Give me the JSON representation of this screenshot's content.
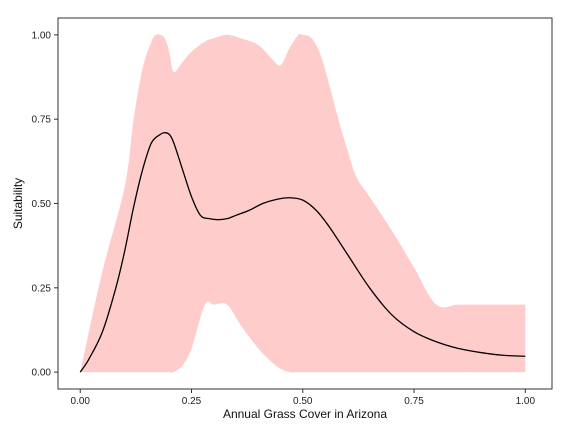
{
  "chart_data": {
    "type": "line",
    "title": "",
    "xlabel": "Annual Grass Cover in Arizona",
    "ylabel": "Suitability",
    "xlim": [
      -0.05,
      1.06
    ],
    "ylim": [
      -0.05,
      1.05
    ],
    "x_ticks": [
      0.0,
      0.25,
      0.5,
      0.75,
      1.0
    ],
    "x_tick_labels": [
      "0.00",
      "0.25",
      "0.50",
      "0.75",
      "1.00"
    ],
    "y_ticks": [
      0.0,
      0.25,
      0.5,
      0.75,
      1.0
    ],
    "y_tick_labels": [
      "0.00",
      "0.25",
      "0.50",
      "0.75",
      "1.00"
    ],
    "grid": false,
    "legend": "none",
    "series": [
      {
        "kind": "line",
        "color": "#000000",
        "x": [
          0.0,
          0.02,
          0.05,
          0.08,
          0.1,
          0.12,
          0.14,
          0.16,
          0.18,
          0.19,
          0.2,
          0.21,
          0.23,
          0.25,
          0.27,
          0.29,
          0.31,
          0.33,
          0.35,
          0.38,
          0.41,
          0.44,
          0.47,
          0.5,
          0.53,
          0.56,
          0.6,
          0.65,
          0.7,
          0.75,
          0.8,
          0.85,
          0.9,
          0.95,
          1.0
        ],
        "y": [
          0.0,
          0.04,
          0.12,
          0.25,
          0.36,
          0.49,
          0.6,
          0.68,
          0.705,
          0.71,
          0.705,
          0.68,
          0.6,
          0.52,
          0.465,
          0.455,
          0.452,
          0.455,
          0.465,
          0.48,
          0.5,
          0.512,
          0.517,
          0.51,
          0.48,
          0.43,
          0.35,
          0.25,
          0.17,
          0.12,
          0.09,
          0.07,
          0.058,
          0.05,
          0.047
        ]
      },
      {
        "kind": "band",
        "color": "#ffcccc",
        "x": [
          0.0,
          0.05,
          0.1,
          0.12,
          0.14,
          0.16,
          0.17,
          0.18,
          0.19,
          0.2,
          0.21,
          0.23,
          0.25,
          0.28,
          0.3,
          0.33,
          0.36,
          0.4,
          0.43,
          0.45,
          0.47,
          0.49,
          0.5,
          0.52,
          0.54,
          0.56,
          0.58,
          0.6,
          0.62,
          0.65,
          0.7,
          0.75,
          0.8,
          0.85,
          0.9,
          0.95,
          1.0
        ],
        "y_upper": [
          0.0,
          0.3,
          0.55,
          0.75,
          0.9,
          0.98,
          1.0,
          1.0,
          0.99,
          0.95,
          0.89,
          0.92,
          0.95,
          0.98,
          0.99,
          1.0,
          0.99,
          0.97,
          0.93,
          0.91,
          0.96,
          1.0,
          1.0,
          0.99,
          0.94,
          0.85,
          0.75,
          0.66,
          0.58,
          0.52,
          0.42,
          0.31,
          0.2,
          0.2,
          0.2,
          0.2,
          0.2
        ],
        "y_lower": [
          0.0,
          0.0,
          0.0,
          0.0,
          0.0,
          0.0,
          0.0,
          0.0,
          0.0,
          0.0,
          0.0,
          0.02,
          0.07,
          0.2,
          0.2,
          0.2,
          0.14,
          0.07,
          0.03,
          0.01,
          0.0,
          0.0,
          0.0,
          0.0,
          0.0,
          0.0,
          0.0,
          0.0,
          0.0,
          0.0,
          0.0,
          0.0,
          0.0,
          0.0,
          0.0,
          0.0,
          0.0
        ]
      }
    ]
  }
}
